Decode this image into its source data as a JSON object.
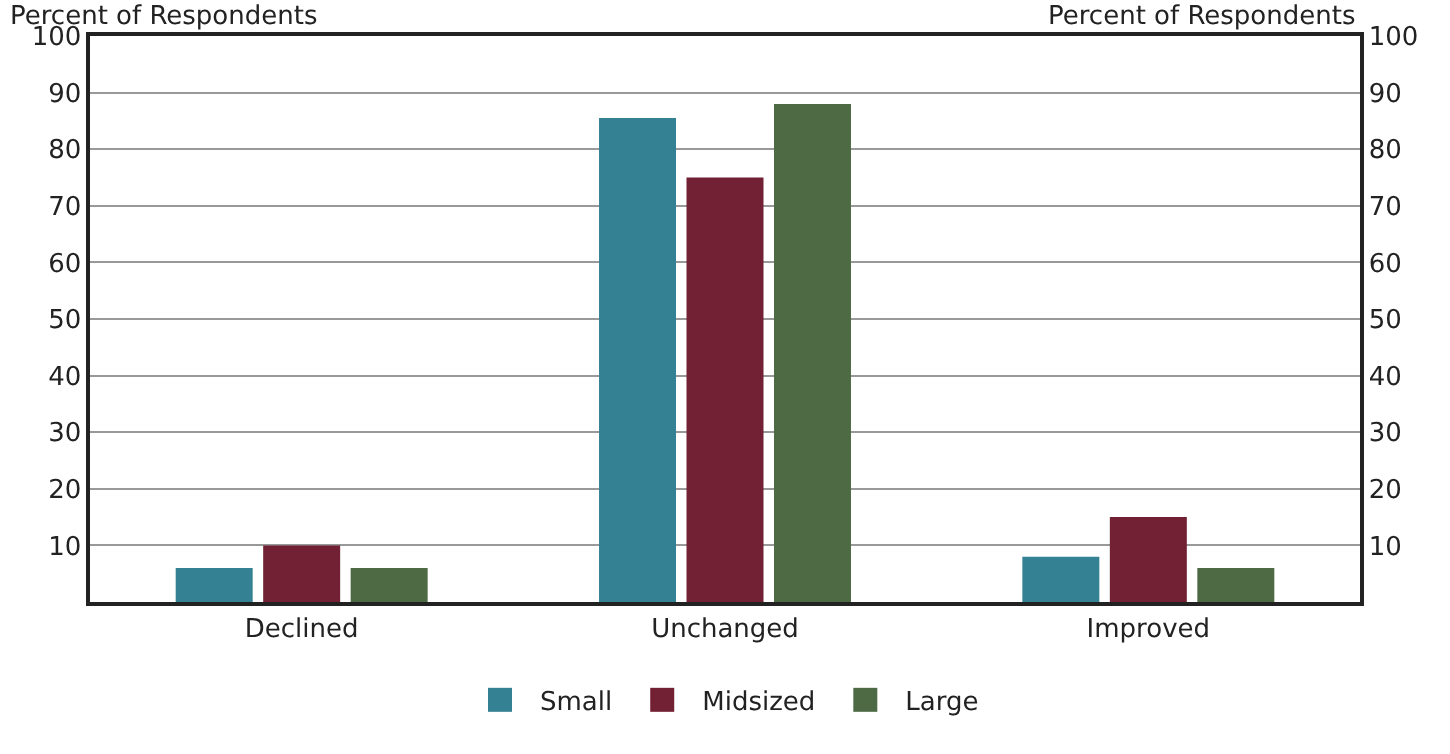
{
  "chart_data": {
    "type": "bar",
    "ylabel": "Percent of Respondents",
    "y2label": "Percent of Respondents",
    "categories": [
      "Declined",
      "Unchanged",
      "Improved"
    ],
    "series": [
      {
        "name": "Small",
        "color": "#358194",
        "values": [
          6,
          85.5,
          8
        ]
      },
      {
        "name": "Midsized",
        "color": "#722033",
        "values": [
          10,
          75,
          15
        ]
      },
      {
        "name": "Large",
        "color": "#4e6a45",
        "values": [
          6,
          88,
          6
        ]
      }
    ],
    "ylim": [
      0,
      100
    ],
    "yticks": [
      10,
      20,
      30,
      40,
      50,
      60,
      70,
      80,
      90,
      100
    ],
    "y2lim": [
      0,
      100
    ],
    "y2ticks": [
      10,
      20,
      30,
      40,
      50,
      60,
      70,
      80,
      90,
      100
    ],
    "grid": "y",
    "legend": "bottom"
  }
}
